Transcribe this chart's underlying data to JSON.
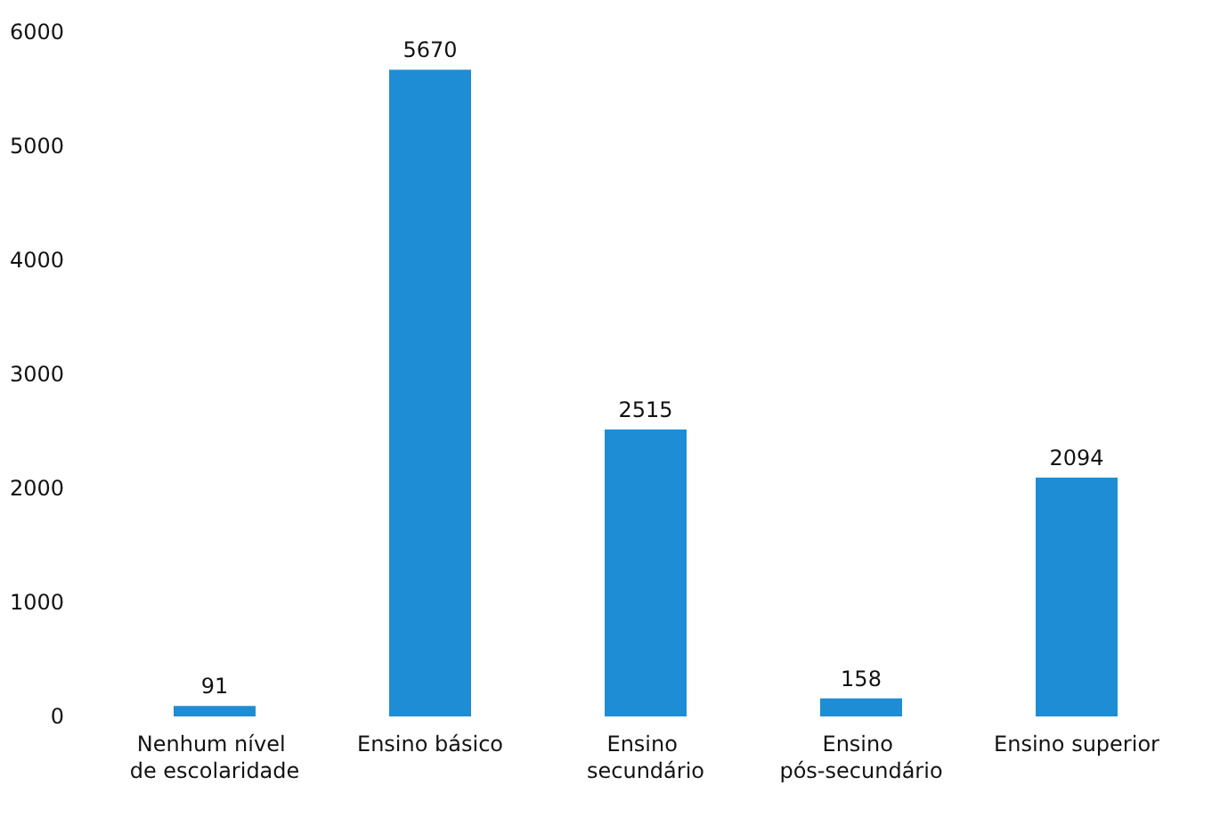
{
  "chart_data": {
    "type": "bar",
    "categories": [
      "Nenhum nível de escolaridade",
      "Ensino básico",
      "Ensino secundário",
      "Ensino pós-secundário",
      "Ensino superior"
    ],
    "values": [
      91,
      5670,
      2515,
      158,
      2094
    ],
    "color": "#1f8dd6",
    "ylim": [
      0,
      6000
    ],
    "yticks": [
      0,
      1000,
      2000,
      3000,
      4000,
      5000,
      6000
    ],
    "data_labels": true,
    "grid": false
  }
}
